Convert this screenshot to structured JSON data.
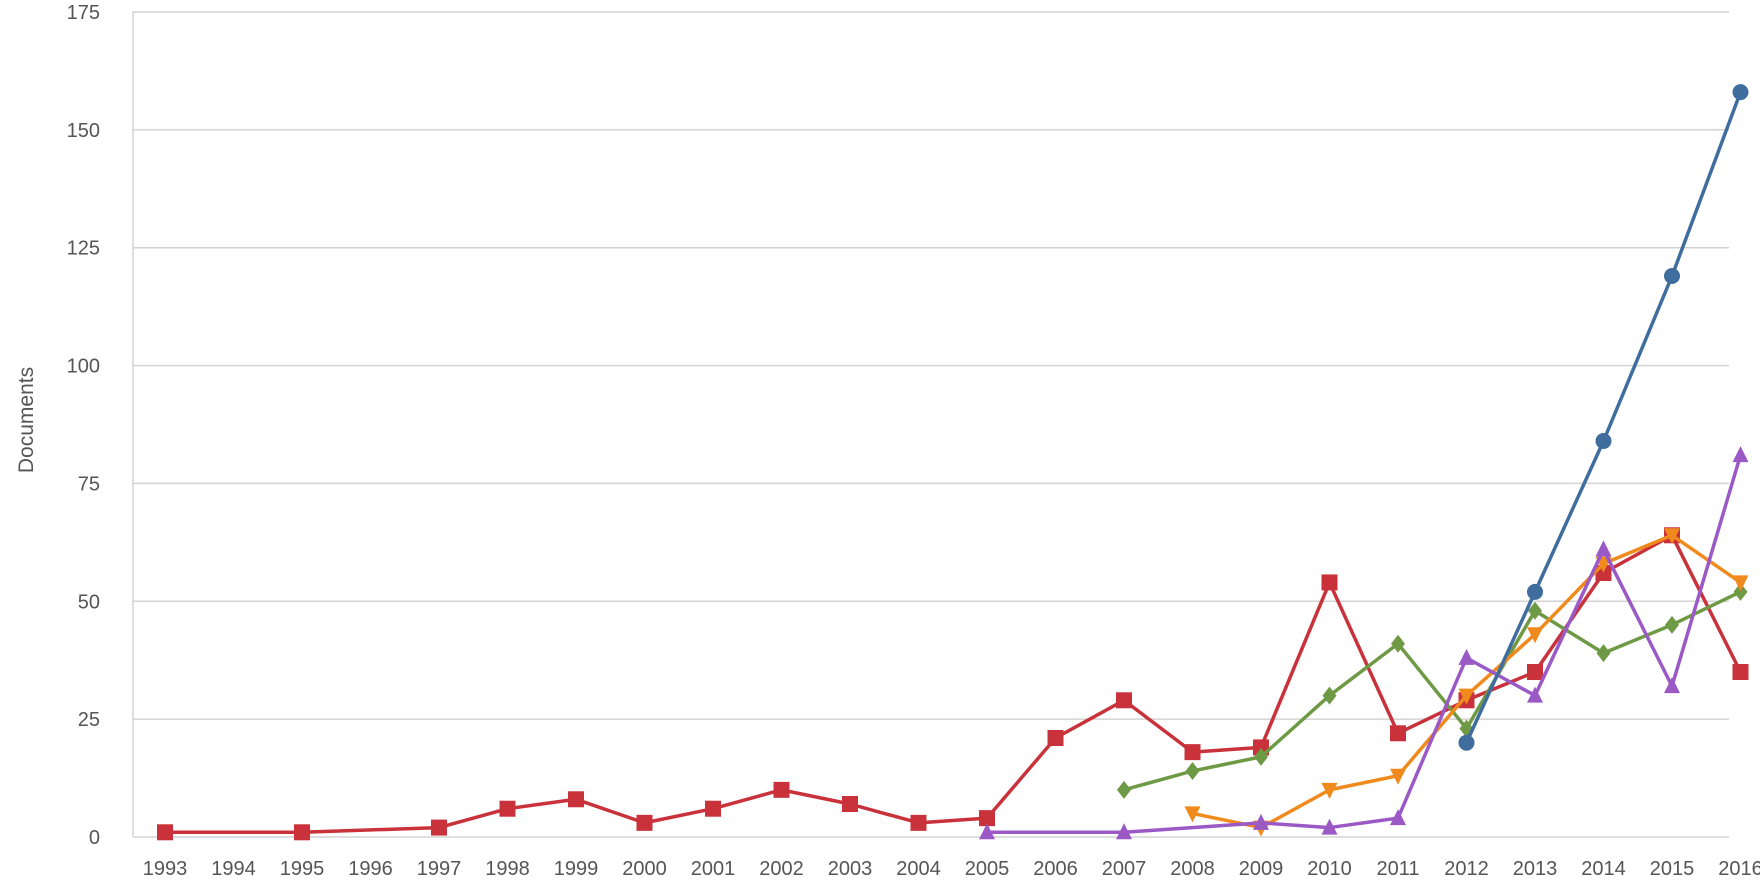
{
  "chart_data": {
    "type": "line",
    "ylabel": "Documents",
    "ylim": [
      0,
      175
    ],
    "yticks": [
      0,
      25,
      50,
      75,
      100,
      125,
      150,
      175
    ],
    "x": [
      "1993",
      "1994",
      "1995",
      "1996",
      "1997",
      "1998",
      "1999",
      "2000",
      "2001",
      "2002",
      "2003",
      "2004",
      "2005",
      "2006",
      "2007",
      "2008",
      "2009",
      "2010",
      "2011",
      "2012",
      "2013",
      "2014",
      "2015",
      "2016"
    ],
    "grid": true,
    "legend": "none",
    "series": [
      {
        "color": "#c9323a",
        "marker": "square",
        "points": [
          [
            1993,
            1
          ],
          [
            1995,
            1
          ],
          [
            1997,
            2
          ],
          [
            1998,
            6
          ],
          [
            1999,
            8
          ],
          [
            2000,
            3
          ],
          [
            2001,
            6
          ],
          [
            2002,
            10
          ],
          [
            2003,
            7
          ],
          [
            2004,
            3
          ],
          [
            2005,
            4
          ],
          [
            2006,
            21
          ],
          [
            2007,
            29
          ],
          [
            2008,
            18
          ],
          [
            2009,
            19
          ],
          [
            2010,
            54
          ],
          [
            2011,
            22
          ],
          [
            2012,
            29
          ],
          [
            2013,
            35
          ],
          [
            2014,
            56
          ],
          [
            2015,
            64
          ],
          [
            2016,
            35
          ]
        ]
      },
      {
        "color": "#6f9a45",
        "marker": "diamond",
        "points": [
          [
            2007,
            10
          ],
          [
            2008,
            14
          ],
          [
            2009,
            17
          ],
          [
            2010,
            30
          ],
          [
            2011,
            41
          ],
          [
            2012,
            23
          ],
          [
            2013,
            48
          ],
          [
            2014,
            39
          ],
          [
            2015,
            45
          ],
          [
            2016,
            52
          ]
        ]
      },
      {
        "color": "#f08a1c",
        "marker": "triangle-down",
        "points": [
          [
            2008,
            5
          ],
          [
            2009,
            2
          ],
          [
            2010,
            10
          ],
          [
            2011,
            13
          ],
          [
            2012,
            30
          ],
          [
            2013,
            43
          ],
          [
            2014,
            58
          ],
          [
            2015,
            64
          ],
          [
            2016,
            54
          ]
        ]
      },
      {
        "color": "#9b59c6",
        "marker": "triangle-up",
        "points": [
          [
            2005,
            1
          ],
          [
            2007,
            1
          ],
          [
            2009,
            3
          ],
          [
            2010,
            2
          ],
          [
            2011,
            4
          ],
          [
            2012,
            38
          ],
          [
            2013,
            30
          ],
          [
            2014,
            61
          ],
          [
            2015,
            32
          ],
          [
            2016,
            81
          ]
        ]
      },
      {
        "color": "#3f6d9e",
        "marker": "circle",
        "points": [
          [
            2012,
            20
          ],
          [
            2013,
            52
          ],
          [
            2014,
            84
          ],
          [
            2015,
            119
          ],
          [
            2016,
            158
          ]
        ]
      }
    ]
  }
}
